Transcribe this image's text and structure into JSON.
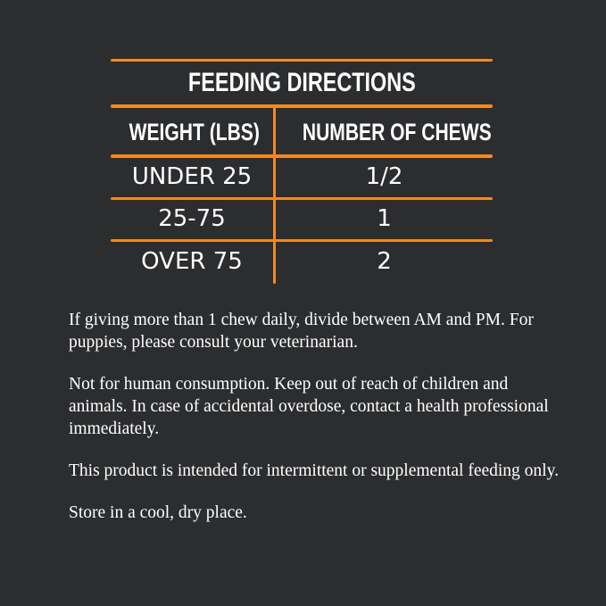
{
  "table": {
    "title": "FEEDING DIRECTIONS",
    "headers": [
      "WEIGHT (LBS)",
      "NUMBER OF CHEWS"
    ],
    "rows": [
      {
        "weight": "UNDER 25",
        "chews": "1/2"
      },
      {
        "weight": "25-75",
        "chews": "1"
      },
      {
        "weight": "OVER 75",
        "chews": "2"
      }
    ]
  },
  "notes": [
    "If giving more than 1 chew daily, divide between AM and PM. For puppies, please consult your veterinarian.",
    "Not for human consumption. Keep out of reach of children and animals. In case of accidental overdose, contact a health professional immediately.",
    "This product is intended for intermittent or supplemental feeding only.",
    "Store in a cool, dry place."
  ],
  "colors": {
    "background": "#2c2d2f",
    "accent": "#f08a24",
    "text": "#ffffff"
  }
}
